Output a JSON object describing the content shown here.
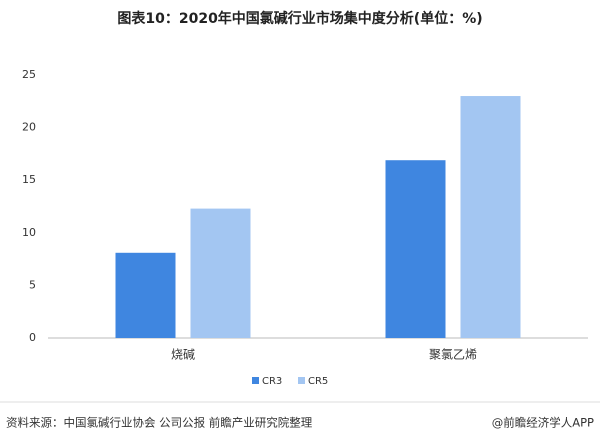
{
  "chart_data": {
    "type": "bar",
    "title": "图表10：2020年中国氯碱行业市场集中度分析(单位：%)",
    "categories": [
      "烧碱",
      "聚氯乙烯"
    ],
    "series": [
      {
        "name": "CR3",
        "color": "#3f86e0",
        "values": [
          8.1,
          16.9
        ]
      },
      {
        "name": "CR5",
        "color": "#a3c6f2",
        "values": [
          12.3,
          23.0
        ]
      }
    ],
    "ylim": [
      0,
      25
    ],
    "yticks": [
      0,
      5,
      10,
      15,
      20,
      25
    ],
    "grid": false,
    "legend": "bottom"
  },
  "source": "资料来源：中国氯碱行业协会 公司公报 前瞻产业研究院整理",
  "credit": "@前瞻经济学人APP"
}
